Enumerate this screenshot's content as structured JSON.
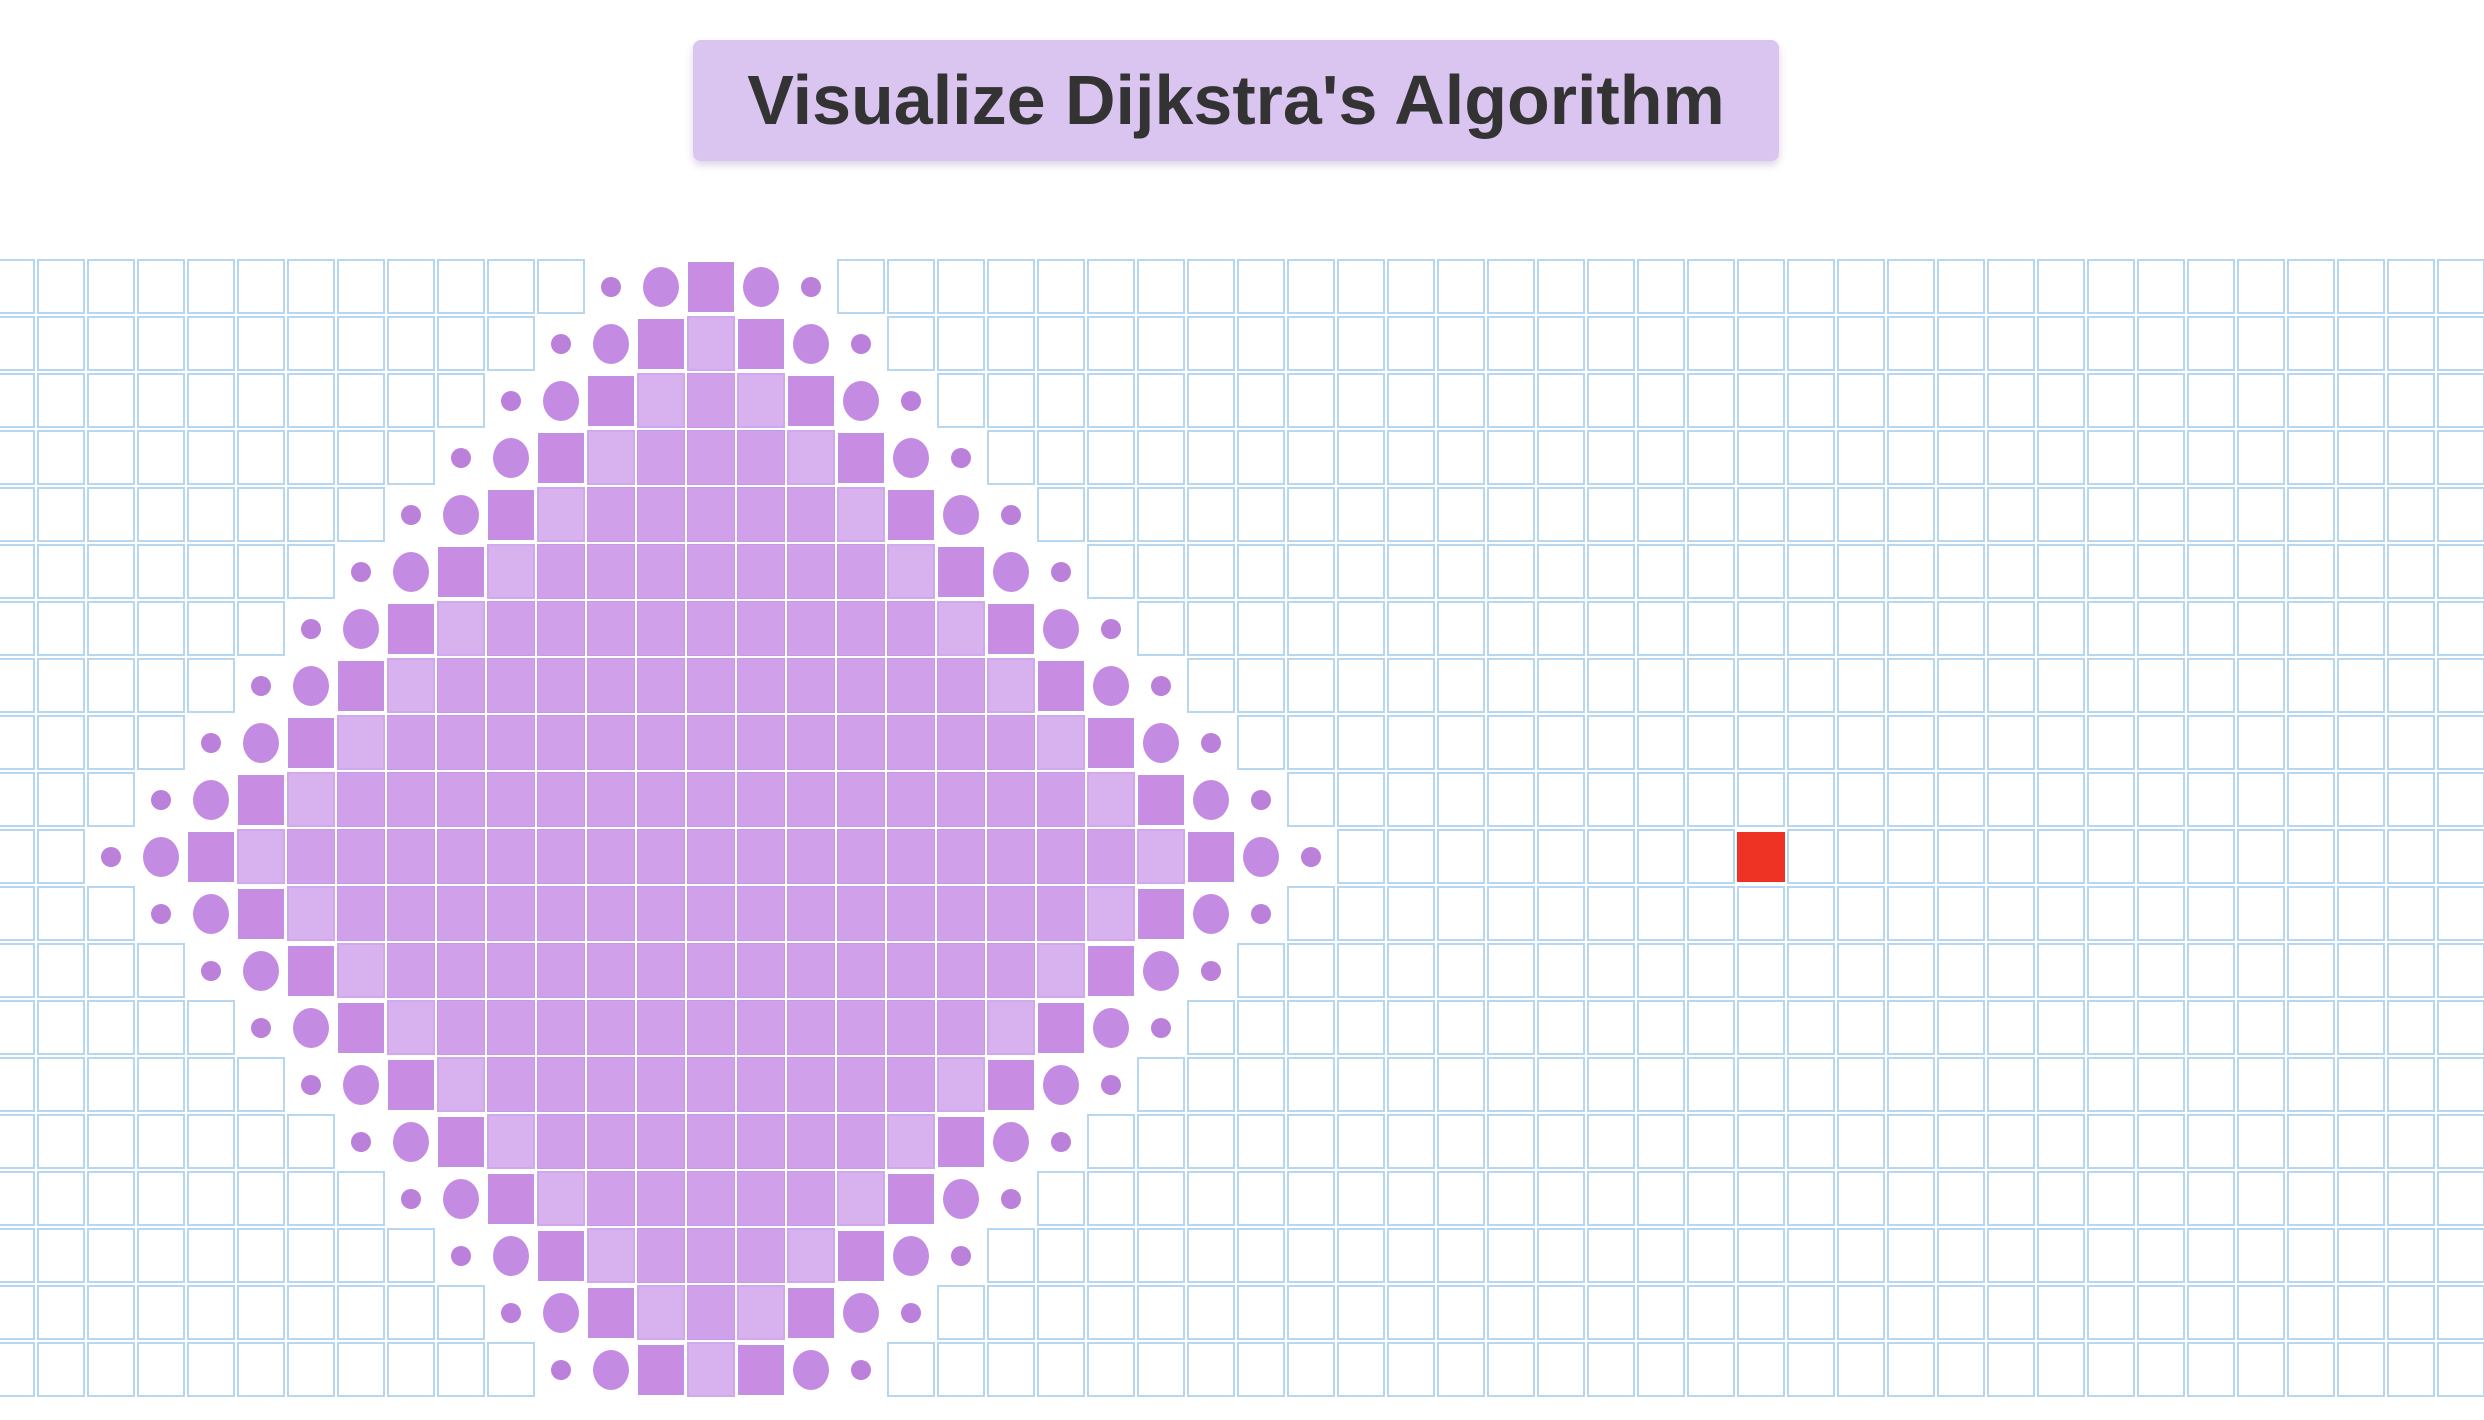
{
  "header": {
    "title": "Visualize Dijkstra's Algorithm"
  },
  "grid": {
    "cols": 50,
    "rows": 20,
    "start": {
      "col": 14,
      "row": 10
    },
    "target": {
      "col": 35,
      "row": 10
    },
    "visited_radius": 11
  },
  "colors": {
    "visited": "#d0a0ea",
    "frontier": "#c88ce3",
    "target": "#ee3224",
    "grid_line": "#b6d7ef"
  }
}
